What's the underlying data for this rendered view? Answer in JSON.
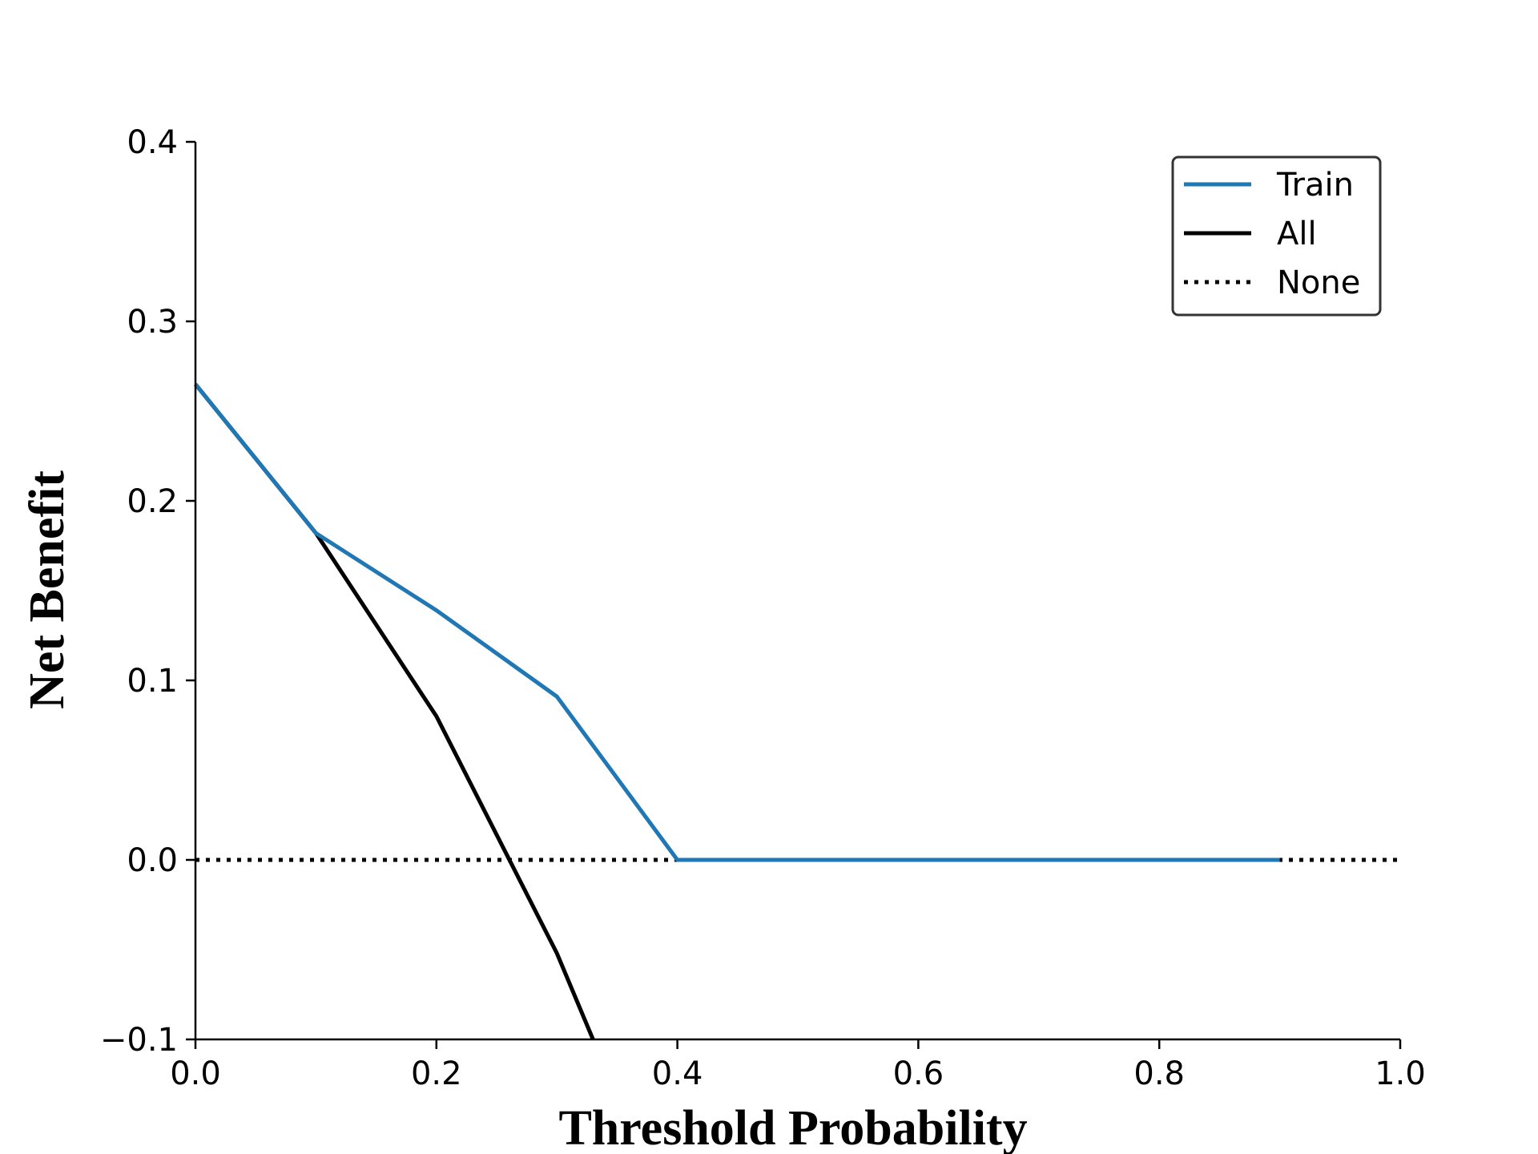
{
  "chart_data": {
    "type": "line",
    "title": "",
    "xlabel": "Threshold Probability",
    "ylabel": "Net Benefit",
    "xlim": [
      0.0,
      1.0
    ],
    "ylim": [
      -0.1,
      0.4
    ],
    "xticks": [
      0.0,
      0.2,
      0.4,
      0.6,
      0.8,
      1.0
    ],
    "xtick_labels": [
      "0.0",
      "0.2",
      "0.4",
      "0.6",
      "0.8",
      "1.0"
    ],
    "yticks": [
      -0.1,
      0.0,
      0.1,
      0.2,
      0.3,
      0.4
    ],
    "ytick_labels": [
      "−0.1",
      "0.0",
      "0.1",
      "0.2",
      "0.3",
      "0.4"
    ],
    "grid": false,
    "legend_position": "top-right",
    "series": [
      {
        "name": "Train",
        "color": "#1f77b4",
        "style": "solid",
        "x": [
          0.0,
          0.1,
          0.2,
          0.3,
          0.4,
          0.5,
          0.6,
          0.7,
          0.8,
          0.9
        ],
        "y": [
          0.265,
          0.182,
          0.139,
          0.091,
          0.0,
          0.0,
          0.0,
          0.0,
          0.0,
          0.0
        ]
      },
      {
        "name": "All",
        "color": "#000000",
        "style": "solid",
        "x": [
          0.0,
          0.1,
          0.2,
          0.3,
          0.33
        ],
        "y": [
          0.265,
          0.182,
          0.08,
          -0.052,
          -0.1
        ]
      },
      {
        "name": "None",
        "color": "#000000",
        "style": "dotted",
        "x": [
          0.0,
          1.0
        ],
        "y": [
          0.0,
          0.0
        ]
      }
    ]
  }
}
